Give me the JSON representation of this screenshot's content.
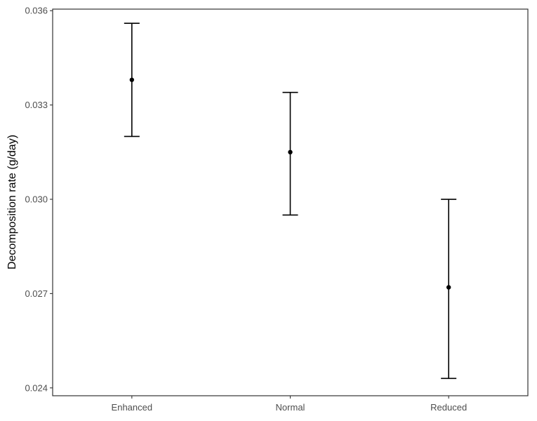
{
  "chart_data": {
    "type": "scatter",
    "categories": [
      "Enhanced",
      "Normal",
      "Reduced"
    ],
    "points": [
      {
        "category": "Enhanced",
        "mean": 0.0338,
        "lower": 0.032,
        "upper": 0.0356
      },
      {
        "category": "Normal",
        "mean": 0.0315,
        "lower": 0.0295,
        "upper": 0.0334
      },
      {
        "category": "Reduced",
        "mean": 0.0272,
        "lower": 0.0243,
        "upper": 0.03
      }
    ],
    "error_bars": true,
    "title": "",
    "xlabel": "",
    "ylabel": "Decomposition rate (g/day)",
    "ylim": [
      0.02375,
      0.03605
    ],
    "yticks": [
      0.024,
      0.027,
      0.03,
      0.033,
      0.036
    ],
    "ytick_labels": [
      "0.024",
      "0.027",
      "0.030",
      "0.033",
      "0.036"
    ],
    "grid": false,
    "legend": "none",
    "colors": {
      "marks": "#000000",
      "tick_text": "#4d4d4d",
      "frame": "#333333"
    }
  }
}
